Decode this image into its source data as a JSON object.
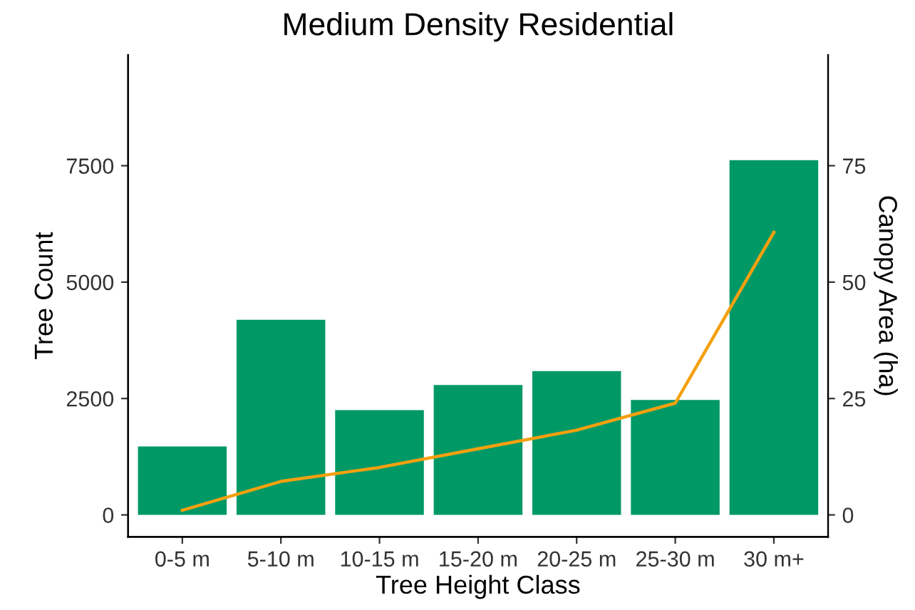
{
  "chart_data": {
    "type": "bar",
    "title": "Medium Density Residential",
    "xlabel": "Tree Height Class",
    "ylabel": "Tree Count",
    "y2label": "Canopy Area (ha)",
    "categories": [
      "0-5 m",
      "5-10 m",
      "10-15 m",
      "15-20 m",
      "20-25 m",
      "25-30 m",
      "30 m+"
    ],
    "series": [
      {
        "color": "#009966",
        "values": [
          1470,
          4190,
          2250,
          2790,
          3090,
          2470,
          7620
        ]
      },
      {
        "type": "line",
        "axis": "y2",
        "color": "#f5a00f",
        "values": [
          1.0,
          7.2,
          10.2,
          14.2,
          18.2,
          24,
          60.7
        ]
      }
    ],
    "ylim": [
      -470,
      9880
    ],
    "yticks": [
      0,
      2500,
      5000,
      7500
    ],
    "y2lim": [
      -4.7,
      98.8
    ],
    "y2ticks": [
      0,
      25,
      50,
      75
    ],
    "grid": false,
    "legend": false,
    "marker": "none",
    "line_style": "solid"
  }
}
